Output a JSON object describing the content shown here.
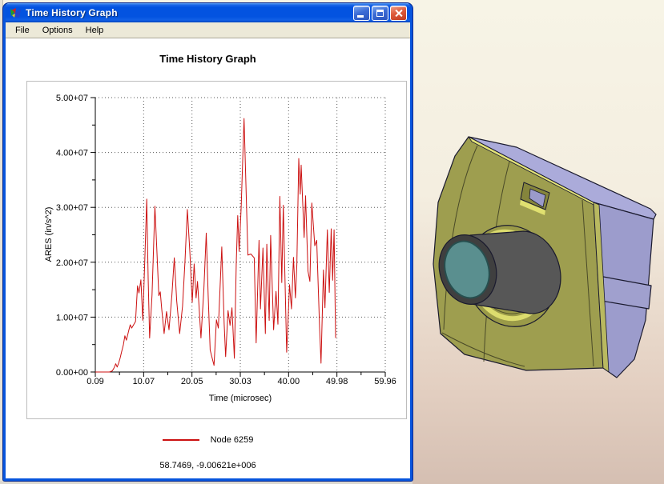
{
  "window": {
    "title": "Time History Graph",
    "menu": [
      {
        "label": "File"
      },
      {
        "label": "Options"
      },
      {
        "label": "Help"
      }
    ]
  },
  "chart": {
    "title": "Time History Graph",
    "legend_label": "Node 6259",
    "status_text": "58.7469, -9.00621e+006"
  },
  "chart_data": {
    "type": "line",
    "title": "Time History Graph",
    "xlabel": "Time (microsec)",
    "ylabel": "ARES (in/s^2)",
    "xlim": [
      0.09,
      59.96
    ],
    "ylim": [
      0,
      50000000.0
    ],
    "grid": true,
    "legend_position": "bottom",
    "x_ticks": [
      0.09,
      10.07,
      20.05,
      30.03,
      40.0,
      49.98,
      59.96
    ],
    "x_tick_labels": [
      "0.09",
      "10.07",
      "20.05",
      "30.03",
      "40.00",
      "49.98",
      "59.96"
    ],
    "y_ticks": [
      0,
      10000000.0,
      20000000.0,
      30000000.0,
      40000000.0,
      50000000.0
    ],
    "y_tick_labels": [
      "0.00+00",
      "1.00+07",
      "2.00+07",
      "3.00+07",
      "4.00+07",
      "5.00+07"
    ],
    "series": [
      {
        "name": "Node 6259",
        "color": "#CC1111",
        "points": [
          [
            0.09,
            0
          ],
          [
            1.5,
            0
          ],
          [
            3.0,
            0
          ],
          [
            3.6,
            200000.0
          ],
          [
            4.0,
            800000.0
          ],
          [
            4.3,
            1500000.0
          ],
          [
            4.6,
            900000.0
          ],
          [
            4.9,
            1600000.0
          ],
          [
            5.2,
            2500000.0
          ],
          [
            5.5,
            3600000.0
          ],
          [
            5.9,
            5000000.0
          ],
          [
            6.2,
            6600000.0
          ],
          [
            6.5,
            5800000.0
          ],
          [
            7.0,
            7600000.0
          ],
          [
            7.3,
            8600000.0
          ],
          [
            7.6,
            8000000.0
          ],
          [
            8.0,
            8600000.0
          ],
          [
            8.4,
            9200000.0
          ],
          [
            8.8,
            15700000.0
          ],
          [
            9.1,
            14400000.0
          ],
          [
            9.5,
            16800000.0
          ],
          [
            9.9,
            9400000.0
          ],
          [
            10.3,
            20000000.0
          ],
          [
            10.7,
            31500000.0
          ],
          [
            11.0,
            17000000.0
          ],
          [
            11.3,
            6200000.0
          ],
          [
            11.8,
            14000000.0
          ],
          [
            12.4,
            30200000.0
          ],
          [
            12.8,
            22000000.0
          ],
          [
            13.2,
            13900000.0
          ],
          [
            13.5,
            14600000.0
          ],
          [
            13.8,
            11500000.0
          ],
          [
            14.3,
            7000000.0
          ],
          [
            14.8,
            11000000.0
          ],
          [
            15.3,
            7700000.0
          ],
          [
            15.9,
            14000000.0
          ],
          [
            16.4,
            20800000.0
          ],
          [
            16.9,
            13000000.0
          ],
          [
            17.5,
            7000000.0
          ],
          [
            18.1,
            12000000.0
          ],
          [
            18.6,
            20000000.0
          ],
          [
            19.1,
            29600000.0
          ],
          [
            19.6,
            22000000.0
          ],
          [
            20.1,
            12700000.0
          ],
          [
            20.5,
            19700000.0
          ],
          [
            20.9,
            13500000.0
          ],
          [
            21.2,
            16500000.0
          ],
          [
            21.9,
            6200000.0
          ],
          [
            22.5,
            15000000.0
          ],
          [
            23.0,
            25300000.0
          ],
          [
            23.4,
            14000000.0
          ],
          [
            23.8,
            4000000.0
          ],
          [
            24.6,
            1200000.0
          ],
          [
            25.1,
            9500000.0
          ],
          [
            25.5,
            8000000.0
          ],
          [
            26.2,
            22800000.0
          ],
          [
            26.7,
            8700000.0
          ],
          [
            27.0,
            2800000.0
          ],
          [
            27.5,
            11200000.0
          ],
          [
            27.9,
            8500000.0
          ],
          [
            28.3,
            11700000.0
          ],
          [
            28.8,
            2500000.0
          ],
          [
            29.2,
            20000000.0
          ],
          [
            29.5,
            28500000.0
          ],
          [
            29.8,
            22000000.0
          ],
          [
            30.2,
            30000000.0
          ],
          [
            30.8,
            46200000.0
          ],
          [
            31.2,
            33800000.0
          ],
          [
            31.6,
            21300000.0
          ],
          [
            32.2,
            21500000.0
          ],
          [
            32.9,
            20800000.0
          ],
          [
            33.3,
            5300000.0
          ],
          [
            33.9,
            24000000.0
          ],
          [
            34.2,
            11500000.0
          ],
          [
            34.7,
            22600000.0
          ],
          [
            35.2,
            7000000.0
          ],
          [
            35.5,
            23300000.0
          ],
          [
            36.0,
            9400000.0
          ],
          [
            36.3,
            24900000.0
          ],
          [
            36.9,
            7700000.0
          ],
          [
            37.4,
            14700000.0
          ],
          [
            37.8,
            8700000.0
          ],
          [
            38.2,
            32000000.0
          ],
          [
            38.6,
            16300000.0
          ],
          [
            38.9,
            30400000.0
          ],
          [
            39.6,
            3600000.0
          ],
          [
            40.2,
            15900000.0
          ],
          [
            40.6,
            11500000.0
          ],
          [
            41.0,
            20900000.0
          ],
          [
            41.4,
            13500000.0
          ],
          [
            41.7,
            19500000.0
          ],
          [
            42.1,
            38900000.0
          ],
          [
            42.4,
            32400000.0
          ],
          [
            42.6,
            37700000.0
          ],
          [
            43.2,
            24500000.0
          ],
          [
            43.5,
            32100000.0
          ],
          [
            44.0,
            18400000.0
          ],
          [
            44.4,
            16500000.0
          ],
          [
            44.8,
            30800000.0
          ],
          [
            45.4,
            23000000.0
          ],
          [
            45.8,
            24000000.0
          ],
          [
            46.4,
            8100000.0
          ],
          [
            46.7,
            1600000.0
          ],
          [
            47.2,
            18600000.0
          ],
          [
            47.5,
            11700000.0
          ],
          [
            48.0,
            25900000.0
          ],
          [
            48.4,
            14500000.0
          ],
          [
            48.8,
            26100000.0
          ],
          [
            49.1,
            16700000.0
          ],
          [
            49.4,
            25900000.0
          ],
          [
            49.7,
            6200000.0
          ]
        ]
      }
    ]
  },
  "viewport": {
    "background_top": "#F7F4E6",
    "background_bottom": "#D5BFB2",
    "colors": {
      "top": "#ABABDA",
      "side": "#9C9CCC",
      "tab": "#A0A0CE",
      "body": "#9E9E4F",
      "bevel": "#E4E477",
      "bevel_side": "#B9B960",
      "boss": "#9A9A48",
      "boss_highlight": "#DCDC6E",
      "barrel": "#575757",
      "barrel_back": "#4E4E4E",
      "barrel_rim": "#3F3F3F",
      "glass": "#5A8F8F",
      "vf_frame": "#85853C",
      "vf_inner": "#9A9ACA",
      "vf_bright": "#E0E070"
    }
  }
}
